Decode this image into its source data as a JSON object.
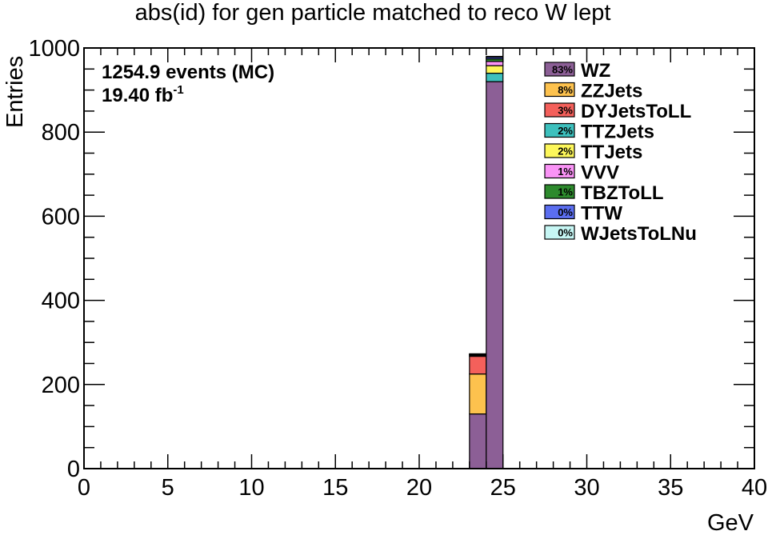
{
  "chart_data": {
    "type": "bar",
    "stacked": true,
    "title": "abs(id) for gen particle matched to reco W lept",
    "xlabel": "GeV",
    "ylabel": "Entries",
    "xlim": [
      0,
      40
    ],
    "ylim": [
      0,
      1000
    ],
    "x_ticks": [
      0,
      5,
      10,
      15,
      20,
      25,
      30,
      35,
      40
    ],
    "y_ticks": [
      0,
      200,
      400,
      600,
      800,
      1000
    ],
    "x_minor_step": 1,
    "y_minor_step": 50,
    "grid": false,
    "legend_position": "top-right",
    "annotations": {
      "events": "1254.9 events (MC)",
      "lumi_value": "19.40 fb",
      "lumi_sup": "-1"
    },
    "bins": [
      {
        "low": 23,
        "high": 24
      },
      {
        "low": 24,
        "high": 25
      }
    ],
    "series": [
      {
        "name": "WZ",
        "percent": "83%",
        "color": "#8c5f96",
        "values": [
          130,
          920
        ]
      },
      {
        "name": "ZZJets",
        "percent": "8%",
        "color": "#fdc24e",
        "values": [
          95,
          0
        ]
      },
      {
        "name": "DYJetsToLL",
        "percent": "3%",
        "color": "#f4605b",
        "values": [
          42,
          0
        ]
      },
      {
        "name": "TTZJets",
        "percent": "2%",
        "color": "#3dc0bd",
        "values": [
          2,
          20
        ]
      },
      {
        "name": "TTJets",
        "percent": "2%",
        "color": "#fdf75a",
        "values": [
          2,
          18
        ]
      },
      {
        "name": "VVV",
        "percent": "1%",
        "color": "#fa93f6",
        "values": [
          1,
          10
        ]
      },
      {
        "name": "TBZToLL",
        "percent": "1%",
        "color": "#2d8a2d",
        "values": [
          1,
          6
        ]
      },
      {
        "name": "TTW",
        "percent": "0%",
        "color": "#5b6ef0",
        "values": [
          0,
          4
        ]
      },
      {
        "name": "WJetsToLNu",
        "percent": "0%",
        "color": "#c6f6f4",
        "values": [
          0,
          2
        ]
      }
    ]
  }
}
